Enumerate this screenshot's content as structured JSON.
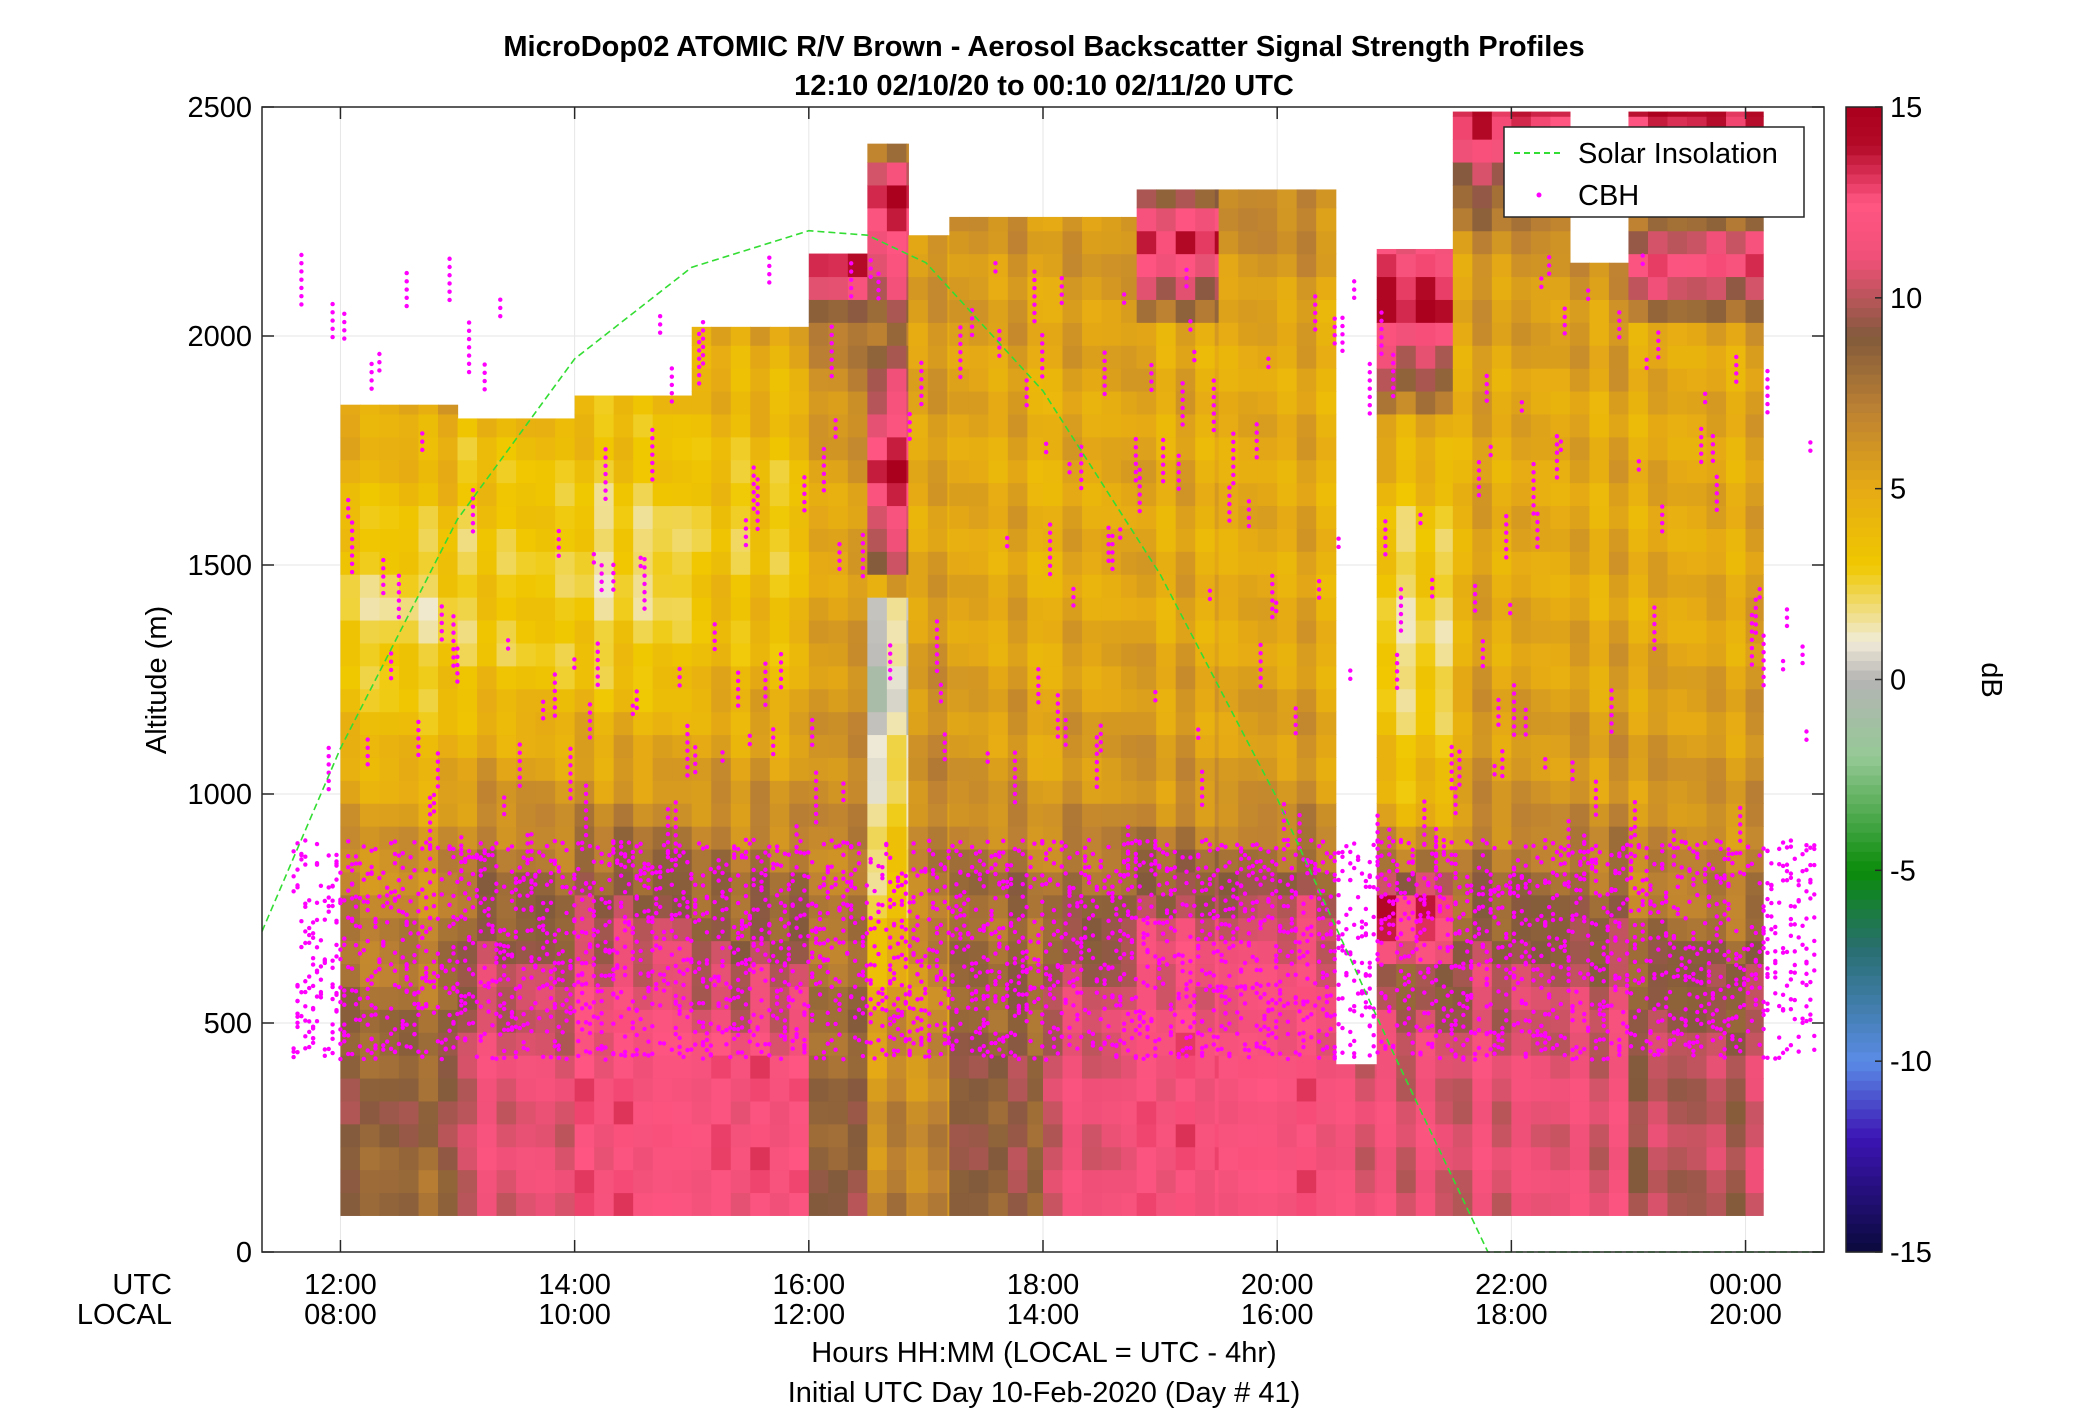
{
  "chart_data": {
    "type": "heatmap",
    "title": "MicroDop02 ATOMIC R/V Brown - Aerosol Backscatter Signal Strength Profiles",
    "subtitle": "12:10 02/10/20 to 00:10 02/11/20  UTC",
    "ylabel": "Altitude (m)",
    "xlabel": "Hours HH:MM  (LOCAL = UTC - 4hr)",
    "footer": "Initial UTC Day 10-Feb-2020 (Day # 41)",
    "x_row_labels": [
      "UTC",
      "LOCAL"
    ],
    "xlim": [
      11.33,
      24.67
    ],
    "ylim": [
      0,
      2500
    ],
    "x_ticks": [
      {
        "hour": 12,
        "utc": "12:00",
        "local": "08:00"
      },
      {
        "hour": 14,
        "utc": "14:00",
        "local": "10:00"
      },
      {
        "hour": 16,
        "utc": "16:00",
        "local": "12:00"
      },
      {
        "hour": 18,
        "utc": "18:00",
        "local": "14:00"
      },
      {
        "hour": 20,
        "utc": "20:00",
        "local": "16:00"
      },
      {
        "hour": 22,
        "utc": "22:00",
        "local": "18:00"
      },
      {
        "hour": 24,
        "utc": "00:00",
        "local": "20:00"
      }
    ],
    "y_ticks": [
      "0",
      "500",
      "1000",
      "1500",
      "2000",
      "2500"
    ],
    "colorbar": {
      "label": "dB",
      "range": [
        -15,
        15
      ],
      "ticks": [
        "-15",
        "-10",
        "-5",
        "0",
        "5",
        "10",
        "15"
      ]
    },
    "legend": {
      "location": "top-right",
      "entries": [
        "Solar Insolation",
        "CBH"
      ]
    },
    "grid": true,
    "series": [
      {
        "name": "Solar Insolation",
        "style": "dashed green line",
        "x_hours": [
          11.33,
          12.0,
          13.0,
          14.0,
          15.0,
          16.0,
          16.5,
          17.0,
          18.0,
          19.0,
          20.0,
          21.0,
          21.8,
          22.0,
          24.67
        ],
        "y_m": [
          700,
          1100,
          1600,
          1950,
          2150,
          2230,
          2220,
          2160,
          1880,
          1480,
          990,
          430,
          0,
          0,
          0
        ]
      },
      {
        "name": "CBH",
        "style": "magenta dots",
        "note": "cloud base heights, dense between 400-900 m"
      }
    ],
    "segments": [
      {
        "start": 12.0,
        "end": 13.0,
        "top": 1850,
        "profile": [
          [
            100,
            8
          ],
          [
            300,
            9
          ],
          [
            500,
            8
          ],
          [
            700,
            7
          ],
          [
            900,
            6
          ],
          [
            1100,
            4
          ],
          [
            1400,
            2
          ],
          [
            1700,
            4
          ],
          [
            1850,
            5
          ]
        ]
      },
      {
        "start": 13.0,
        "end": 14.0,
        "top": 1820,
        "profile": [
          [
            100,
            11
          ],
          [
            400,
            11
          ],
          [
            600,
            10
          ],
          [
            800,
            8
          ],
          [
            1000,
            6
          ],
          [
            1300,
            3
          ],
          [
            1600,
            3
          ],
          [
            1820,
            4
          ]
        ]
      },
      {
        "start": 14.0,
        "end": 15.0,
        "top": 1870,
        "profile": [
          [
            100,
            12
          ],
          [
            400,
            12
          ],
          [
            600,
            11
          ],
          [
            800,
            9
          ],
          [
            1000,
            6
          ],
          [
            1300,
            3
          ],
          [
            1500,
            2
          ],
          [
            1870,
            4
          ]
        ]
      },
      {
        "start": 15.0,
        "end": 16.0,
        "top": 2020,
        "profile": [
          [
            100,
            12
          ],
          [
            400,
            12
          ],
          [
            600,
            10
          ],
          [
            800,
            8
          ],
          [
            1000,
            6
          ],
          [
            1300,
            4
          ],
          [
            1600,
            3
          ],
          [
            2020,
            5
          ]
        ]
      },
      {
        "start": 16.0,
        "end": 16.5,
        "top": 2180,
        "profile": [
          [
            100,
            9
          ],
          [
            500,
            8
          ],
          [
            800,
            7
          ],
          [
            1200,
            6
          ],
          [
            1600,
            5
          ],
          [
            2000,
            7
          ],
          [
            2180,
            14
          ]
        ]
      },
      {
        "start": 16.5,
        "end": 16.85,
        "top": 2420,
        "profile": [
          [
            100,
            7
          ],
          [
            500,
            6
          ],
          [
            750,
            3
          ],
          [
            1000,
            2
          ],
          [
            1250,
            0
          ],
          [
            1400,
            1
          ],
          [
            1500,
            9
          ],
          [
            1700,
            14
          ],
          [
            2000,
            8
          ],
          [
            2300,
            14
          ],
          [
            2420,
            7
          ]
        ]
      },
      {
        "start": 16.85,
        "end": 17.2,
        "top": 2220,
        "profile": [
          [
            100,
            7
          ],
          [
            500,
            6
          ],
          [
            800,
            7
          ],
          [
            1200,
            6
          ],
          [
            1600,
            5
          ],
          [
            2220,
            6
          ]
        ]
      },
      {
        "start": 17.2,
        "end": 18.0,
        "top": 2260,
        "profile": [
          [
            100,
            9
          ],
          [
            400,
            9
          ],
          [
            600,
            8
          ],
          [
            800,
            8
          ],
          [
            1000,
            6
          ],
          [
            1400,
            5
          ],
          [
            1800,
            5
          ],
          [
            2260,
            6
          ]
        ]
      },
      {
        "start": 18.0,
        "end": 18.8,
        "top": 2260,
        "profile": [
          [
            100,
            11
          ],
          [
            400,
            11
          ],
          [
            600,
            10
          ],
          [
            800,
            8
          ],
          [
            1000,
            6
          ],
          [
            1400,
            5
          ],
          [
            1800,
            5
          ],
          [
            2260,
            6
          ]
        ]
      },
      {
        "start": 18.8,
        "end": 19.5,
        "top": 2320,
        "profile": [
          [
            100,
            12
          ],
          [
            400,
            12
          ],
          [
            700,
            11
          ],
          [
            850,
            8
          ],
          [
            1000,
            6
          ],
          [
            1400,
            5
          ],
          [
            2000,
            5
          ],
          [
            2200,
            14
          ],
          [
            2320,
            8
          ]
        ]
      },
      {
        "start": 19.5,
        "end": 20.5,
        "top": 2320,
        "profile": [
          [
            100,
            12
          ],
          [
            400,
            12
          ],
          [
            700,
            11
          ],
          [
            850,
            8
          ],
          [
            1000,
            6
          ],
          [
            1400,
            5
          ],
          [
            2000,
            5
          ],
          [
            2320,
            7
          ]
        ]
      },
      {
        "start": 20.5,
        "end": 20.85,
        "top": 410,
        "profile": [
          [
            100,
            11
          ],
          [
            410,
            11
          ]
        ]
      },
      {
        "start": 20.85,
        "end": 21.5,
        "top": 2190,
        "profile": [
          [
            100,
            11
          ],
          [
            400,
            11
          ],
          [
            600,
            9
          ],
          [
            750,
            14
          ],
          [
            850,
            7
          ],
          [
            1000,
            4
          ],
          [
            1300,
            2
          ],
          [
            1600,
            3
          ],
          [
            1800,
            5
          ],
          [
            2050,
            14
          ],
          [
            2190,
            12
          ]
        ]
      },
      {
        "start": 21.5,
        "end": 22.5,
        "top": 2490,
        "profile": [
          [
            100,
            11
          ],
          [
            400,
            11
          ],
          [
            600,
            10
          ],
          [
            800,
            8
          ],
          [
            1000,
            6
          ],
          [
            1400,
            5
          ],
          [
            1800,
            5
          ],
          [
            2200,
            6
          ],
          [
            2490,
            14
          ]
        ]
      },
      {
        "start": 22.5,
        "end": 23.0,
        "top": 2160,
        "profile": [
          [
            100,
            11
          ],
          [
            400,
            11
          ],
          [
            600,
            10
          ],
          [
            800,
            8
          ],
          [
            1000,
            6
          ],
          [
            1400,
            5
          ],
          [
            1800,
            5
          ],
          [
            2160,
            6
          ]
        ]
      },
      {
        "start": 23.0,
        "end": 24.15,
        "top": 2490,
        "profile": [
          [
            100,
            10
          ],
          [
            400,
            10
          ],
          [
            600,
            9
          ],
          [
            800,
            7
          ],
          [
            1000,
            6
          ],
          [
            1400,
            5
          ],
          [
            2000,
            5
          ],
          [
            2180,
            14
          ],
          [
            2230,
            7
          ],
          [
            2490,
            14
          ]
        ]
      }
    ]
  },
  "colors": {
    "solar": "#33dd33",
    "cbh": "#ff00ff",
    "grid": "#e6e6e6"
  }
}
